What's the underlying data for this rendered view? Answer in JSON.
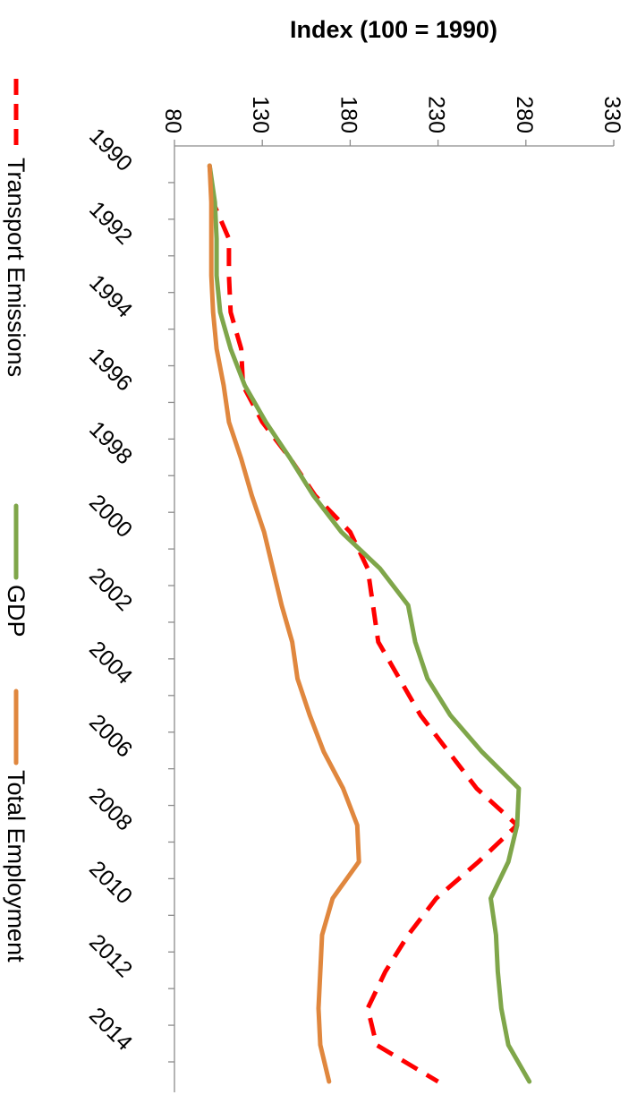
{
  "chart_data": {
    "type": "line",
    "title": "",
    "ylabel": "Index (100 = 1990)",
    "xlabel": "",
    "ylim": [
      80,
      330
    ],
    "y_ticks": [
      80,
      130,
      180,
      230,
      280,
      330
    ],
    "xlim": [
      1990,
      2015
    ],
    "x_ticks": [
      1990,
      1992,
      1994,
      1996,
      1998,
      2000,
      2002,
      2004,
      2006,
      2008,
      2010,
      2012,
      2014
    ],
    "x": [
      1990,
      1991,
      1992,
      1993,
      1994,
      1995,
      1996,
      1997,
      1998,
      1999,
      2000,
      2001,
      2002,
      2003,
      2004,
      2005,
      2006,
      2007,
      2008,
      2009,
      2010,
      2011,
      2012,
      2013,
      2014,
      2015
    ],
    "legend_position": "left",
    "grid": false,
    "series": [
      {
        "name": "Transport Emissions",
        "color": "#ff0000",
        "dash": "dashed",
        "values": [
          100,
          102,
          111,
          111,
          112,
          118,
          119,
          130,
          146,
          160,
          180,
          190,
          193,
          196,
          208,
          220,
          236,
          252,
          275,
          253,
          229,
          213,
          200,
          190,
          195,
          230
        ]
      },
      {
        "name": "GDP",
        "color": "#7fa64a",
        "dash": "solid",
        "values": [
          100,
          103,
          104,
          104,
          106,
          112,
          120,
          132,
          146,
          159,
          175,
          197,
          213,
          217,
          224,
          237,
          255,
          276,
          275,
          270,
          260,
          263,
          264,
          266,
          270,
          282
        ]
      },
      {
        "name": "Total Employment",
        "color": "#e0873e",
        "dash": "solid",
        "values": [
          100,
          101,
          101,
          101,
          102,
          104,
          108,
          111,
          118,
          124,
          131,
          136,
          141,
          147,
          150,
          157,
          165,
          176,
          184,
          185,
          170,
          164,
          163,
          162,
          163,
          168
        ]
      }
    ]
  }
}
